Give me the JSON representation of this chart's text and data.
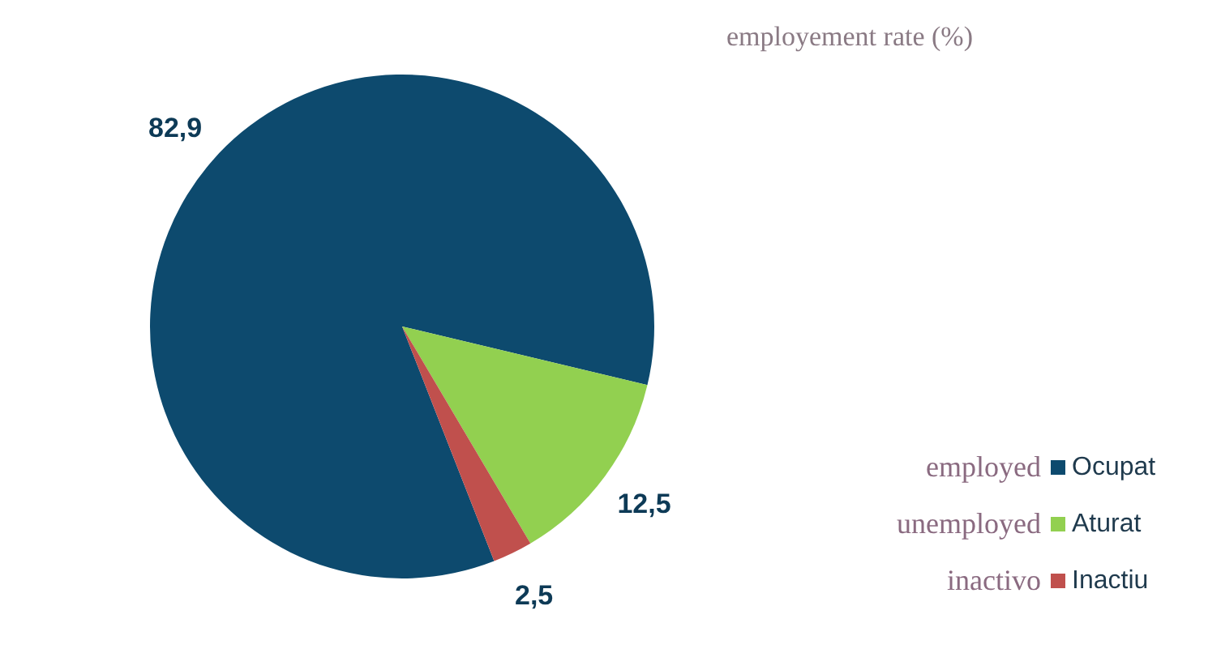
{
  "chart_data": {
    "type": "pie",
    "title": "employement rate (%)",
    "categories": [
      "Ocupat",
      "Aturat",
      "Inactiu"
    ],
    "values": [
      82.9,
      12.5,
      2.5
    ],
    "value_labels": [
      "82,9",
      "12,5",
      "2,5"
    ],
    "colors": [
      "#0d4a6e",
      "#92d050",
      "#c0504d"
    ],
    "legend": "right",
    "annotations": [
      "employed",
      "unemployed",
      "inactivo"
    ]
  }
}
